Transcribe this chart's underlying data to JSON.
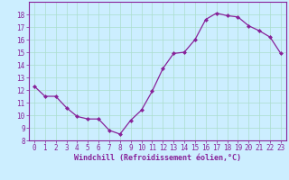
{
  "x": [
    0,
    1,
    2,
    3,
    4,
    5,
    6,
    7,
    8,
    9,
    10,
    11,
    12,
    13,
    14,
    15,
    16,
    17,
    18,
    19,
    20,
    21,
    22,
    23
  ],
  "y": [
    12.3,
    11.5,
    11.5,
    10.6,
    9.9,
    9.7,
    9.7,
    8.8,
    8.5,
    9.6,
    10.4,
    11.9,
    13.7,
    14.9,
    15.0,
    16.0,
    17.6,
    18.1,
    17.9,
    17.8,
    17.1,
    16.7,
    16.2,
    14.9
  ],
  "xlim": [
    -0.5,
    23.5
  ],
  "ylim": [
    8,
    19
  ],
  "yticks": [
    8,
    9,
    10,
    11,
    12,
    13,
    14,
    15,
    16,
    17,
    18
  ],
  "xticks": [
    0,
    1,
    2,
    3,
    4,
    5,
    6,
    7,
    8,
    9,
    10,
    11,
    12,
    13,
    14,
    15,
    16,
    17,
    18,
    19,
    20,
    21,
    22,
    23
  ],
  "xlabel": "Windchill (Refroidissement éolien,°C)",
  "line_color": "#882299",
  "marker": "D",
  "marker_size": 2.0,
  "bg_color": "#cceeff",
  "grid_color": "#aaddcc",
  "label_color": "#882299",
  "tick_color": "#882299",
  "spine_color": "#882299",
  "tick_fontsize": 5.5,
  "xlabel_fontsize": 6.0,
  "figwidth": 3.2,
  "figheight": 2.0,
  "dpi": 100
}
